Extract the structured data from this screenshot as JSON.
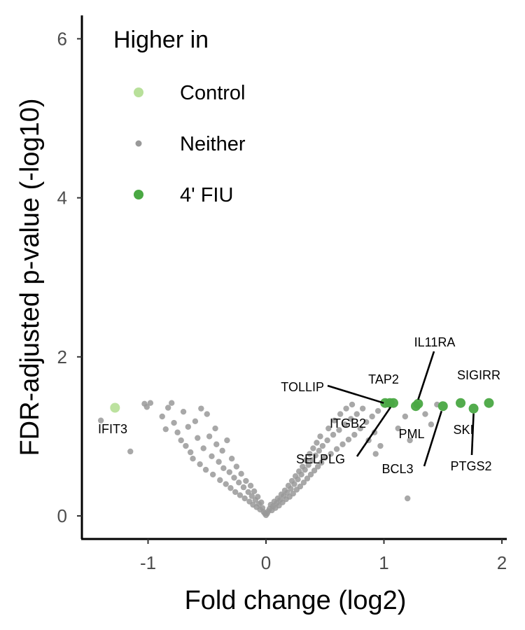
{
  "chart_data": {
    "type": "scatter",
    "title": "",
    "xlabel": "Fold change (log2)",
    "ylabel": "FDR-adjusted p-value (-log10)",
    "xlim": [
      -1.55,
      2.05
    ],
    "ylim": [
      -0.3,
      6.3
    ],
    "x_ticks": [
      "-1",
      "0",
      "1",
      "2"
    ],
    "y_ticks": [
      "0",
      "2",
      "4",
      "6"
    ],
    "grid": false,
    "legend": {
      "title": "Higher in",
      "position": "top-left",
      "entries": [
        {
          "label": "Control",
          "color": "#b8e09a",
          "size": "large"
        },
        {
          "label": "Neither",
          "color": "#999999",
          "size": "small"
        },
        {
          "label": "4' FIU",
          "color": "#4aa843",
          "size": "large"
        }
      ]
    },
    "series": [
      {
        "name": "Control",
        "color": "#b8e09a",
        "points": [
          {
            "x": -1.28,
            "y": 1.36
          }
        ]
      },
      {
        "name": "4' FIU",
        "color": "#4aa843",
        "points": [
          {
            "x": 1.01,
            "y": 1.42
          },
          {
            "x": 1.05,
            "y": 1.42
          },
          {
            "x": 1.08,
            "y": 1.42
          },
          {
            "x": 1.27,
            "y": 1.38
          },
          {
            "x": 1.29,
            "y": 1.41
          },
          {
            "x": 1.5,
            "y": 1.38
          },
          {
            "x": 1.65,
            "y": 1.42
          },
          {
            "x": 1.76,
            "y": 1.35
          },
          {
            "x": 1.89,
            "y": 1.42
          }
        ]
      },
      {
        "name": "Neither",
        "color": "#999999",
        "points": [
          {
            "x": -1.4,
            "y": 1.2
          },
          {
            "x": -1.15,
            "y": 0.81
          },
          {
            "x": -1.03,
            "y": 1.41
          },
          {
            "x": -1.01,
            "y": 1.37
          },
          {
            "x": -0.98,
            "y": 1.42
          },
          {
            "x": -0.88,
            "y": 1.25
          },
          {
            "x": -0.85,
            "y": 1.09
          },
          {
            "x": -0.83,
            "y": 1.36
          },
          {
            "x": -0.8,
            "y": 1.42
          },
          {
            "x": -0.78,
            "y": 1.17
          },
          {
            "x": -0.75,
            "y": 1.05
          },
          {
            "x": -0.72,
            "y": 0.95
          },
          {
            "x": -0.7,
            "y": 1.31
          },
          {
            "x": -0.68,
            "y": 0.88
          },
          {
            "x": -0.66,
            "y": 1.12
          },
          {
            "x": -0.64,
            "y": 0.8
          },
          {
            "x": -0.62,
            "y": 0.72
          },
          {
            "x": -0.6,
            "y": 1.19
          },
          {
            "x": -0.58,
            "y": 0.98
          },
          {
            "x": -0.56,
            "y": 0.65
          },
          {
            "x": -0.55,
            "y": 1.35
          },
          {
            "x": -0.53,
            "y": 0.85
          },
          {
            "x": -0.51,
            "y": 0.58
          },
          {
            "x": -0.5,
            "y": 1.28
          },
          {
            "x": -0.48,
            "y": 1.0
          },
          {
            "x": -0.46,
            "y": 0.75
          },
          {
            "x": -0.45,
            "y": 0.52
          },
          {
            "x": -0.43,
            "y": 1.1
          },
          {
            "x": -0.42,
            "y": 0.9
          },
          {
            "x": -0.4,
            "y": 0.68
          },
          {
            "x": -0.39,
            "y": 0.45
          },
          {
            "x": -0.37,
            "y": 0.82
          },
          {
            "x": -0.36,
            "y": 0.6
          },
          {
            "x": -0.34,
            "y": 0.4
          },
          {
            "x": -0.33,
            "y": 0.95
          },
          {
            "x": -0.31,
            "y": 0.55
          },
          {
            "x": -0.3,
            "y": 0.35
          },
          {
            "x": -0.29,
            "y": 0.72
          },
          {
            "x": -0.27,
            "y": 0.48
          },
          {
            "x": -0.26,
            "y": 0.3
          },
          {
            "x": -0.25,
            "y": 0.62
          },
          {
            "x": -0.23,
            "y": 0.42
          },
          {
            "x": -0.22,
            "y": 0.26
          },
          {
            "x": -0.21,
            "y": 0.53
          },
          {
            "x": -0.19,
            "y": 0.36
          },
          {
            "x": -0.18,
            "y": 0.22
          },
          {
            "x": -0.17,
            "y": 0.44
          },
          {
            "x": -0.15,
            "y": 0.3
          },
          {
            "x": -0.14,
            "y": 0.18
          },
          {
            "x": -0.13,
            "y": 0.38
          },
          {
            "x": -0.12,
            "y": 0.25
          },
          {
            "x": -0.11,
            "y": 0.14
          },
          {
            "x": -0.1,
            "y": 0.31
          },
          {
            "x": -0.09,
            "y": 0.2
          },
          {
            "x": -0.08,
            "y": 0.11
          },
          {
            "x": -0.07,
            "y": 0.24
          },
          {
            "x": -0.06,
            "y": 0.15
          },
          {
            "x": -0.05,
            "y": 0.08
          },
          {
            "x": -0.04,
            "y": 0.17
          },
          {
            "x": -0.03,
            "y": 0.1
          },
          {
            "x": -0.02,
            "y": 0.05
          },
          {
            "x": -0.01,
            "y": 0.03
          },
          {
            "x": 0.0,
            "y": 0.01
          },
          {
            "x": 0.01,
            "y": 0.03
          },
          {
            "x": 0.02,
            "y": 0.06
          },
          {
            "x": 0.03,
            "y": 0.09
          },
          {
            "x": 0.04,
            "y": 0.14
          },
          {
            "x": 0.05,
            "y": 0.07
          },
          {
            "x": 0.06,
            "y": 0.12
          },
          {
            "x": 0.07,
            "y": 0.18
          },
          {
            "x": 0.08,
            "y": 0.1
          },
          {
            "x": 0.09,
            "y": 0.16
          },
          {
            "x": 0.1,
            "y": 0.22
          },
          {
            "x": 0.11,
            "y": 0.13
          },
          {
            "x": 0.12,
            "y": 0.2
          },
          {
            "x": 0.13,
            "y": 0.27
          },
          {
            "x": 0.14,
            "y": 0.17
          },
          {
            "x": 0.15,
            "y": 0.25
          },
          {
            "x": 0.16,
            "y": 0.32
          },
          {
            "x": 0.17,
            "y": 0.21
          },
          {
            "x": 0.18,
            "y": 0.29
          },
          {
            "x": 0.19,
            "y": 0.38
          },
          {
            "x": 0.2,
            "y": 0.24
          },
          {
            "x": 0.21,
            "y": 0.34
          },
          {
            "x": 0.22,
            "y": 0.44
          },
          {
            "x": 0.23,
            "y": 0.28
          },
          {
            "x": 0.24,
            "y": 0.4
          },
          {
            "x": 0.25,
            "y": 0.5
          },
          {
            "x": 0.26,
            "y": 0.33
          },
          {
            "x": 0.27,
            "y": 0.46
          },
          {
            "x": 0.28,
            "y": 0.56
          },
          {
            "x": 0.29,
            "y": 0.37
          },
          {
            "x": 0.3,
            "y": 0.52
          },
          {
            "x": 0.31,
            "y": 0.62
          },
          {
            "x": 0.32,
            "y": 0.42
          },
          {
            "x": 0.33,
            "y": 0.58
          },
          {
            "x": 0.34,
            "y": 0.7
          },
          {
            "x": 0.35,
            "y": 0.47
          },
          {
            "x": 0.36,
            "y": 0.64
          },
          {
            "x": 0.37,
            "y": 0.78
          },
          {
            "x": 0.38,
            "y": 0.52
          },
          {
            "x": 0.39,
            "y": 0.7
          },
          {
            "x": 0.4,
            "y": 0.85
          },
          {
            "x": 0.41,
            "y": 0.57
          },
          {
            "x": 0.42,
            "y": 0.76
          },
          {
            "x": 0.43,
            "y": 0.92
          },
          {
            "x": 0.44,
            "y": 0.62
          },
          {
            "x": 0.45,
            "y": 0.82
          },
          {
            "x": 0.46,
            "y": 1.0
          },
          {
            "x": 0.47,
            "y": 0.67
          },
          {
            "x": 0.48,
            "y": 0.88
          },
          {
            "x": 0.5,
            "y": 0.73
          },
          {
            "x": 0.52,
            "y": 0.95
          },
          {
            "x": 0.53,
            "y": 1.1
          },
          {
            "x": 0.55,
            "y": 0.78
          },
          {
            "x": 0.57,
            "y": 1.02
          },
          {
            "x": 0.58,
            "y": 1.2
          },
          {
            "x": 0.6,
            "y": 0.84
          },
          {
            "x": 0.62,
            "y": 1.08
          },
          {
            "x": 0.63,
            "y": 1.28
          },
          {
            "x": 0.65,
            "y": 0.9
          },
          {
            "x": 0.67,
            "y": 1.15
          },
          {
            "x": 0.68,
            "y": 1.35
          },
          {
            "x": 0.7,
            "y": 0.96
          },
          {
            "x": 0.72,
            "y": 1.22
          },
          {
            "x": 0.73,
            "y": 1.4
          },
          {
            "x": 0.75,
            "y": 1.02
          },
          {
            "x": 0.77,
            "y": 1.28
          },
          {
            "x": 0.8,
            "y": 1.1
          },
          {
            "x": 0.82,
            "y": 1.35
          },
          {
            "x": 0.85,
            "y": 1.18
          },
          {
            "x": 0.87,
            "y": 0.95
          },
          {
            "x": 0.9,
            "y": 1.25
          },
          {
            "x": 0.92,
            "y": 1.05
          },
          {
            "x": 0.95,
            "y": 1.32
          },
          {
            "x": 0.97,
            "y": 0.88
          },
          {
            "x": 0.93,
            "y": 0.78
          },
          {
            "x": 1.12,
            "y": 1.1
          },
          {
            "x": 1.18,
            "y": 1.25
          },
          {
            "x": 1.22,
            "y": 0.95
          },
          {
            "x": 1.35,
            "y": 1.28
          },
          {
            "x": 1.4,
            "y": 1.15
          },
          {
            "x": 1.45,
            "y": 1.4
          },
          {
            "x": 1.2,
            "y": 0.22
          }
        ]
      }
    ],
    "annotations": [
      {
        "text": "IFIT3",
        "x": -1.28,
        "y": 1.36
      },
      {
        "text": "TOLLIP",
        "x": 1.01,
        "y": 1.42
      },
      {
        "text": "TAP2",
        "x": 1.05,
        "y": 1.42
      },
      {
        "text": "IL11RA",
        "x": 1.29,
        "y": 1.41
      },
      {
        "text": "SIGIRR",
        "x": 1.89,
        "y": 1.42
      },
      {
        "text": "ITGB2",
        "x": 1.08,
        "y": 1.42
      },
      {
        "text": "PML",
        "x": 1.27,
        "y": 1.38
      },
      {
        "text": "SKI",
        "x": 1.65,
        "y": 1.42
      },
      {
        "text": "SELPLG",
        "x": 1.08,
        "y": 1.42
      },
      {
        "text": "BCL3",
        "x": 1.5,
        "y": 1.38
      },
      {
        "text": "PTGS2",
        "x": 1.76,
        "y": 1.35
      }
    ]
  }
}
